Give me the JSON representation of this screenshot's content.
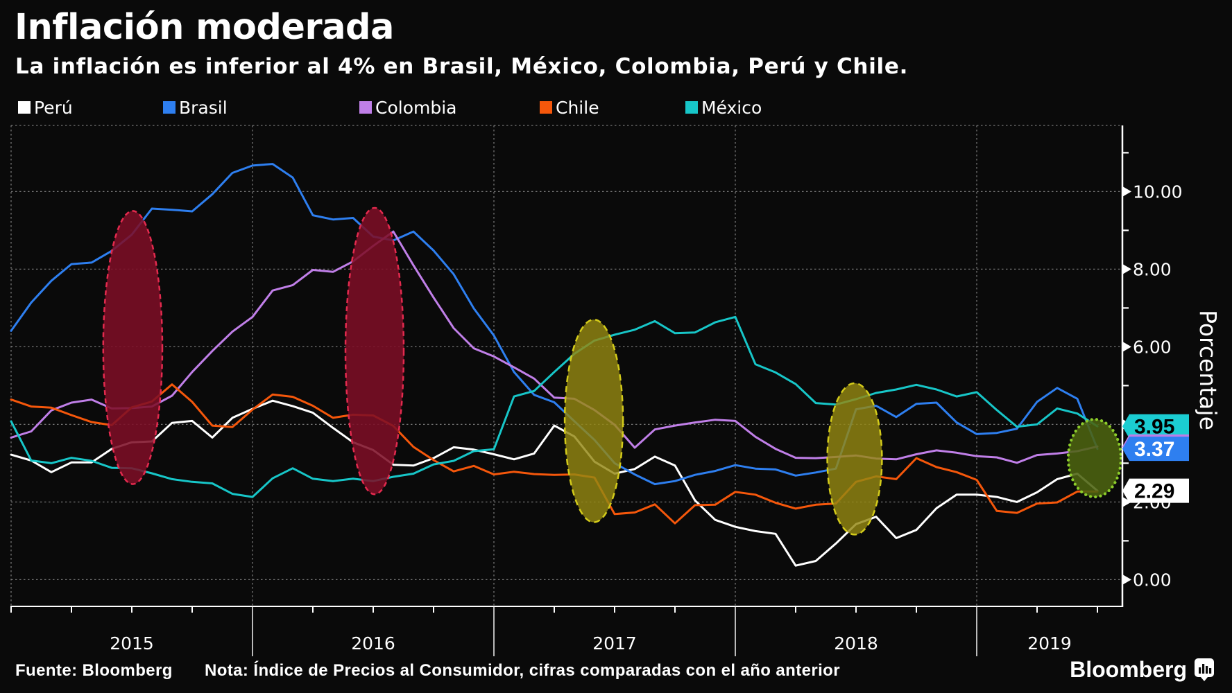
{
  "title": "Inflación moderada",
  "subtitle": "La inflación es inferior al 4% en Brasil, México, Colombia, Perú y Chile.",
  "legend": [
    {
      "label": "Perú",
      "color": "#ffffff",
      "x": 26
    },
    {
      "label": "Brasil",
      "color": "#2e7ff0",
      "x": 235
    },
    {
      "label": "Colombia",
      "color": "#c07fe8",
      "x": 518
    },
    {
      "label": "Chile",
      "color": "#f5570b",
      "x": 778
    },
    {
      "label": "México",
      "color": "#17c6c8",
      "x": 988
    }
  ],
  "chart_data": {
    "type": "line",
    "title": "Inflación moderada",
    "x_start": "2014-12",
    "x_end": "2019-06",
    "frequency": "monthly",
    "ylabel": "Porcentaje",
    "ylim": [
      -0.7,
      11.7
    ],
    "y_major_ticks": [
      0,
      2,
      4,
      6,
      8,
      10
    ],
    "y_major_labels": [
      "0.00",
      "2.00",
      "4.00",
      "6.00",
      "8.00",
      "10.00"
    ],
    "y_minor_ticks": [
      1,
      3,
      5,
      7,
      9,
      11
    ],
    "x_year_labels": [
      "2015",
      "2016",
      "2017",
      "2018",
      "2019"
    ],
    "grid": true,
    "legend_position": "top",
    "series": [
      {
        "name": "Perú",
        "color": "#ffffff",
        "values": [
          3.22,
          3.07,
          2.77,
          3.02,
          3.02,
          3.37,
          3.54,
          3.56,
          4.04,
          4.09,
          3.66,
          4.17,
          4.4,
          4.61,
          4.47,
          4.3,
          3.91,
          3.54,
          3.34,
          2.96,
          2.94,
          3.13,
          3.41,
          3.35,
          3.23,
          3.1,
          3.25,
          3.97,
          3.69,
          3.04,
          2.73,
          2.85,
          3.17,
          2.94,
          2.04,
          1.54,
          1.36,
          1.25,
          1.18,
          0.36,
          0.48,
          0.93,
          1.43,
          1.62,
          1.07,
          1.28,
          1.84,
          2.19,
          2.19,
          2.13,
          2.0,
          2.25,
          2.59,
          2.73,
          2.29
        ]
      },
      {
        "name": "Brasil",
        "color": "#2e7ff0",
        "values": [
          6.41,
          7.14,
          7.7,
          8.13,
          8.17,
          8.47,
          8.89,
          9.56,
          9.53,
          9.49,
          9.93,
          10.48,
          10.67,
          10.71,
          10.36,
          9.39,
          9.28,
          9.32,
          8.84,
          8.74,
          8.97,
          8.48,
          7.87,
          6.99,
          6.29,
          5.35,
          4.76,
          4.57,
          4.08,
          3.6,
          3.0,
          2.71,
          2.46,
          2.54,
          2.7,
          2.8,
          2.95,
          2.86,
          2.84,
          2.68,
          2.76,
          2.86,
          4.39,
          4.48,
          4.19,
          4.53,
          4.56,
          4.05,
          3.75,
          3.78,
          3.89,
          4.58,
          4.94,
          4.66,
          3.37
        ]
      },
      {
        "name": "Colombia",
        "color": "#c07fe8",
        "values": [
          3.66,
          3.82,
          4.36,
          4.56,
          4.64,
          4.41,
          4.42,
          4.46,
          4.74,
          5.35,
          5.89,
          6.39,
          6.77,
          7.45,
          7.59,
          7.98,
          7.93,
          8.2,
          8.6,
          8.97,
          8.1,
          7.27,
          6.48,
          5.96,
          5.75,
          5.47,
          5.18,
          4.69,
          4.66,
          4.37,
          3.99,
          3.4,
          3.87,
          3.97,
          4.05,
          4.12,
          4.09,
          3.68,
          3.37,
          3.14,
          3.13,
          3.16,
          3.2,
          3.12,
          3.1,
          3.23,
          3.33,
          3.27,
          3.18,
          3.15,
          3.01,
          3.21,
          3.25,
          3.31,
          3.43
        ]
      },
      {
        "name": "Chile",
        "color": "#f5570b",
        "values": [
          4.64,
          4.46,
          4.43,
          4.24,
          4.06,
          3.98,
          4.44,
          4.59,
          5.03,
          4.58,
          3.97,
          3.93,
          4.38,
          4.77,
          4.71,
          4.48,
          4.17,
          4.25,
          4.23,
          3.96,
          3.42,
          3.08,
          2.79,
          2.93,
          2.71,
          2.78,
          2.72,
          2.7,
          2.71,
          2.63,
          1.69,
          1.73,
          1.94,
          1.45,
          1.92,
          1.93,
          2.26,
          2.19,
          1.98,
          1.83,
          1.93,
          1.96,
          2.52,
          2.66,
          2.59,
          3.13,
          2.9,
          2.77,
          2.57,
          1.77,
          1.72,
          1.96,
          1.99,
          2.27,
          2.27
        ]
      },
      {
        "name": "México",
        "color": "#17c6c8",
        "values": [
          4.08,
          3.07,
          3.0,
          3.14,
          3.06,
          2.88,
          2.87,
          2.74,
          2.59,
          2.52,
          2.48,
          2.21,
          2.13,
          2.61,
          2.87,
          2.6,
          2.54,
          2.6,
          2.54,
          2.65,
          2.73,
          2.97,
          3.06,
          3.31,
          3.36,
          4.72,
          4.86,
          5.35,
          5.82,
          6.16,
          6.31,
          6.44,
          6.66,
          6.35,
          6.37,
          6.63,
          6.77,
          5.55,
          5.34,
          5.04,
          4.55,
          4.51,
          4.65,
          4.81,
          4.9,
          5.02,
          4.9,
          4.72,
          4.83,
          4.37,
          3.94,
          4.0,
          4.41,
          4.28,
          3.95
        ]
      }
    ],
    "annotations": [
      {
        "kind": "ellipse",
        "style": "red",
        "cx_month": 6.05,
        "cy_value": 5.98,
        "rx_months": 1.47,
        "ry_values": 3.52
      },
      {
        "kind": "ellipse",
        "style": "red",
        "cx_month": 18.07,
        "cy_value": 5.89,
        "rx_months": 1.45,
        "ry_values": 3.69
      },
      {
        "kind": "ellipse",
        "style": "olive",
        "cx_month": 28.97,
        "cy_value": 4.09,
        "rx_months": 1.45,
        "ry_values": 2.61
      },
      {
        "kind": "ellipse",
        "style": "olive",
        "cx_month": 41.93,
        "cy_value": 3.11,
        "rx_months": 1.36,
        "ry_values": 1.95
      },
      {
        "kind": "ellipse",
        "style": "green",
        "cx_month": 53.86,
        "cy_value": 3.13,
        "rx_months": 1.31,
        "ry_values": 1.0
      }
    ],
    "end_value_tags": [
      {
        "series": "México",
        "text": "3.95",
        "value": 3.95,
        "bg": "#1bcdd2",
        "fg": "#000000",
        "z": 1
      },
      {
        "series": "Colombia",
        "text": "3.43",
        "value": 3.43,
        "bg": "#bd7ce6",
        "fg": "#ffffff",
        "z": 2
      },
      {
        "series": "Brasil",
        "text": "3.37",
        "value": 3.37,
        "bg": "#2e7ff0",
        "fg": "#ffffff",
        "z": 3
      },
      {
        "series": "Perú",
        "text": "2.29",
        "value": 2.29,
        "bg": "#ffffff",
        "fg": "#000000",
        "z": 4
      }
    ],
    "annotation_styles": {
      "red": {
        "fill": "rgba(125,14,38,0.87)",
        "stroke": "#e32a4e",
        "dash": "7 5",
        "width": 2.5
      },
      "olive": {
        "fill": "rgba(148,135,18,0.82)",
        "stroke": "#d3cb1a",
        "dash": "9 6",
        "width": 2.5
      },
      "green": {
        "fill": "rgba(76,99,16,0.88)",
        "stroke": "#8ccd2b",
        "dash": "0.1 7.2",
        "width": 4.2
      }
    },
    "grid_color": "#767676",
    "axis_color": "#ffffff"
  },
  "footer": {
    "source": "Fuente: Bloomberg",
    "note": "Nota: Índice de Precios al Consumidor, cifras comparadas con el año anterior",
    "brand": "Bloomberg"
  }
}
